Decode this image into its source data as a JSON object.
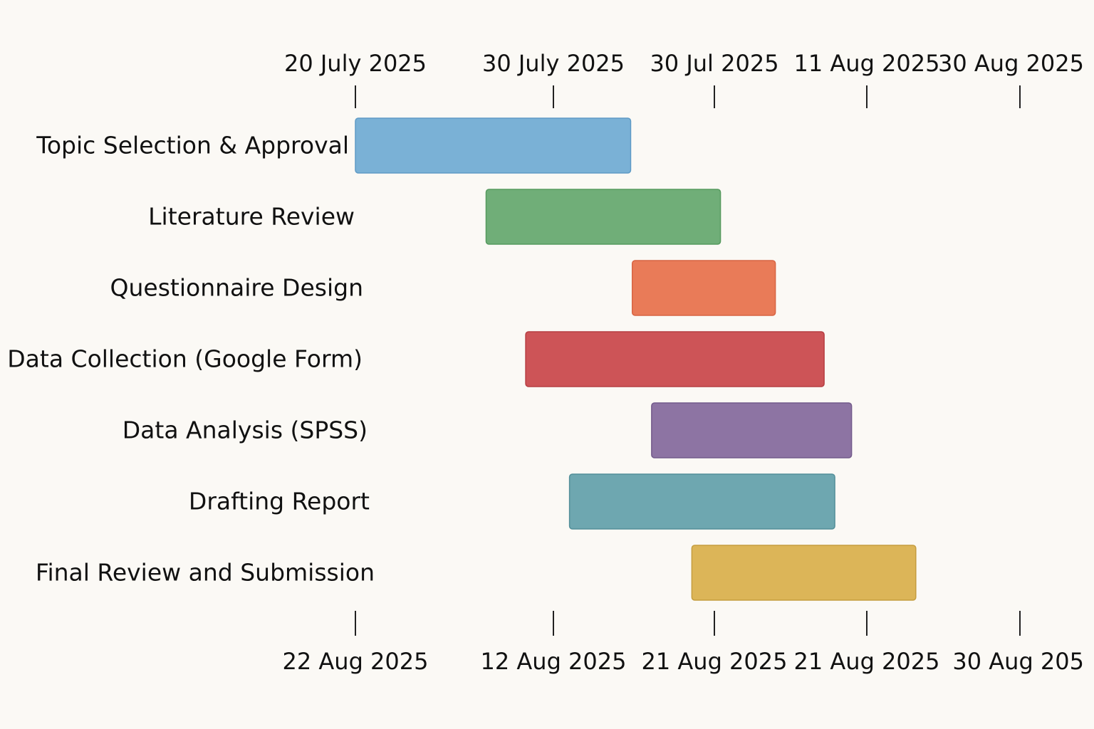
{
  "chart_data": {
    "type": "gantt",
    "top_ticks": [
      "20 July 2025",
      "30 July 2025",
      "30 Jul 2025",
      "11 Aug 2025",
      "30 Aug 2025"
    ],
    "bottom_ticks": [
      "22 Aug 2025",
      "12 Aug 2025",
      "21 Aug 2025",
      "21 Aug 2025",
      "30 Aug 205"
    ],
    "tasks": [
      {
        "name": "Topic Selection & Approval",
        "start": 0.0,
        "end": 1.48,
        "color": "#7ab1d6",
        "border": "#5f9bc6"
      },
      {
        "name": "Literature Review",
        "start": 0.66,
        "end": 2.04,
        "color": "#70ae78",
        "border": "#569a5f"
      },
      {
        "name": "Questionnaire Design",
        "start": 1.49,
        "end": 2.4,
        "color": "#e97b58",
        "border": "#d86443"
      },
      {
        "name": "Data Collection (Google Form)",
        "start": 0.86,
        "end": 2.72,
        "color": "#cd5457",
        "border": "#b63e42"
      },
      {
        "name": "Data Analysis (SPSS)",
        "start": 1.61,
        "end": 2.9,
        "color": "#8d74a3",
        "border": "#735b8b"
      },
      {
        "name": "Drafting Report",
        "start": 1.1,
        "end": 2.79,
        "color": "#6ea7b0",
        "border": "#538f99"
      },
      {
        "name": "Final Review and Submission",
        "start": 1.86,
        "end": 3.32,
        "color": "#dcb558",
        "border": "#c59d3f"
      }
    ],
    "grid": false,
    "legend": "none"
  }
}
